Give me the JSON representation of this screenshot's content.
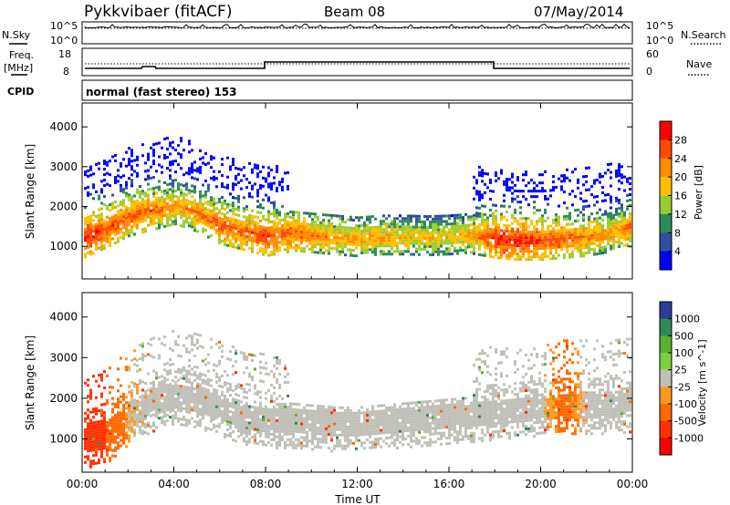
{
  "header": {
    "station": "Pykkvibaer (fitACF)",
    "beam": "Beam 08",
    "date": "07/May/2014"
  },
  "status_panels": {
    "nsky_label": "N.Sky",
    "nsearch_label": "N.Search",
    "freq_label_line1": "Freq.",
    "freq_label_line2": "[MHz]",
    "nave_label": "Nave",
    "cpid_label": "CPID",
    "noise_ticks_left": [
      "10^5",
      "10^0"
    ],
    "noise_ticks_right": [
      "10^5",
      "10^0"
    ],
    "freq_ticks_left": [
      "18",
      "8"
    ],
    "freq_ticks_right": [
      "60",
      "0"
    ],
    "cpid_text": "normal (fast stereo) 153"
  },
  "colorbars": {
    "power": {
      "label": "Power [dB]",
      "ticks": [
        "28",
        "24",
        "20",
        "16",
        "12",
        "8",
        "4"
      ],
      "colors": [
        "#ff0000",
        "#ff4a00",
        "#ff8c00",
        "#ffbe00",
        "#9acd32",
        "#2e8b57",
        "#2f4f9f",
        "#0000ff"
      ]
    },
    "velocity": {
      "label": "Velocity [m s^-1]",
      "ticks": [
        "1000",
        "500",
        "100",
        "25",
        "-25",
        "-100",
        "-500",
        "-1000"
      ],
      "colors": [
        "#2c3e9a",
        "#2e8b57",
        "#5ab030",
        "#7fd040",
        "#c0c0b8",
        "#ff9a20",
        "#ff6a00",
        "#ff3000",
        "#ff0000"
      ]
    }
  },
  "chart_data": [
    {
      "type": "heatmap",
      "title": "",
      "xlabel": "",
      "ylabel": "Slant Range [km]",
      "xlim": [
        0,
        24
      ],
      "ylim": [
        180,
        4600
      ],
      "y_ticks": [
        "1000",
        "2000",
        "3000",
        "4000"
      ],
      "x_ticks": [
        "00:00",
        "04:00",
        "08:00",
        "12:00",
        "16:00",
        "20:00",
        "00:00"
      ],
      "value_label": "Power [dB]",
      "main_echo_band": {
        "x_hours": [
          0,
          1,
          2,
          3,
          4,
          5,
          6,
          7,
          8,
          9,
          10,
          11,
          12,
          13,
          14,
          15,
          16,
          17,
          18,
          19,
          20,
          21,
          22,
          23,
          24
        ],
        "range_km": [
          1250,
          1500,
          1800,
          1950,
          2100,
          1900,
          1600,
          1450,
          1300,
          1400,
          1350,
          1300,
          1250,
          1300,
          1300,
          1280,
          1300,
          1350,
          1250,
          1200,
          1200,
          1250,
          1300,
          1400,
          1550
        ],
        "power_db": [
          28,
          26,
          24,
          24,
          20,
          22,
          24,
          24,
          26,
          24,
          22,
          20,
          20,
          20,
          18,
          18,
          18,
          20,
          28,
          28,
          26,
          24,
          22,
          20,
          24
        ]
      }
    },
    {
      "type": "heatmap",
      "title": "",
      "xlabel": "Time UT",
      "ylabel": "Slant Range [km]",
      "xlim": [
        0,
        24
      ],
      "ylim": [
        180,
        4600
      ],
      "y_ticks": [
        "1000",
        "2000",
        "3000",
        "4000"
      ],
      "x_ticks": [
        "00:00",
        "04:00",
        "08:00",
        "12:00",
        "16:00",
        "20:00",
        "00:00"
      ],
      "value_label": "Velocity [m s^-1]",
      "main_echo_band": {
        "x_hours": [
          0,
          1,
          2,
          3,
          4,
          5,
          6,
          7,
          8,
          9,
          10,
          11,
          12,
          13,
          14,
          15,
          16,
          17,
          18,
          19,
          20,
          21,
          22,
          23,
          24
        ],
        "range_km": [
          1000,
          1100,
          1600,
          1900,
          2100,
          2000,
          1800,
          1600,
          1500,
          1500,
          1450,
          1400,
          1400,
          1450,
          1500,
          1550,
          1600,
          1650,
          1700,
          1750,
          1800,
          1850,
          1850,
          1850,
          1900
        ],
        "velocity_ms": [
          -500,
          -300,
          -25,
          0,
          0,
          0,
          0,
          0,
          0,
          0,
          0,
          0,
          0,
          0,
          0,
          0,
          0,
          0,
          0,
          0,
          0,
          -100,
          0,
          0,
          0
        ]
      }
    }
  ]
}
